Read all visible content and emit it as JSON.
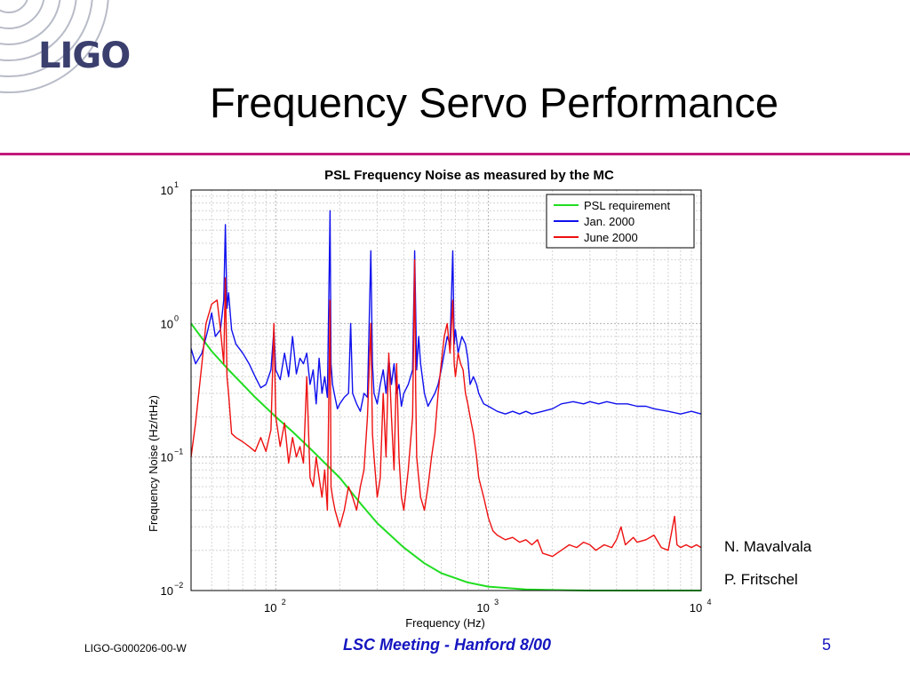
{
  "logo": {
    "text": "LIGO"
  },
  "slide": {
    "title": "Frequency Servo Performance"
  },
  "credits": [
    "N. Mavalvala",
    "P. Fritschel"
  ],
  "footer": {
    "left": "LIGO-G000206-00-W",
    "center": "LSC Meeting - Hanford 8/00",
    "page": "5"
  },
  "colors": {
    "accent_rule": "#c2187c",
    "footer_text": "#1515c0",
    "logo": "#3b3f6e"
  },
  "chart_data": {
    "type": "line",
    "title": "PSL Frequency Noise as measured by the MC",
    "xlabel": "Frequency (Hz)",
    "ylabel": "Frequency Noise (Hz/rtHz)",
    "xscale": "log",
    "yscale": "log",
    "xlim": [
      40,
      10000
    ],
    "ylim": [
      0.01,
      10
    ],
    "grid": true,
    "legend_position": "top-right",
    "x_tick_labels": [
      {
        "value": 100,
        "base": "10",
        "exp": "2"
      },
      {
        "value": 1000,
        "base": "10",
        "exp": "3"
      },
      {
        "value": 10000,
        "base": "10",
        "exp": "4"
      }
    ],
    "y_tick_labels": [
      {
        "value": 0.01,
        "base": "10",
        "exp": "−2"
      },
      {
        "value": 0.1,
        "base": "10",
        "exp": "−1"
      },
      {
        "value": 1,
        "base": "10",
        "exp": "0"
      },
      {
        "value": 10,
        "base": "10",
        "exp": "1"
      }
    ],
    "series": [
      {
        "name": "PSL requirement",
        "color": "#22dd22",
        "points": [
          [
            40,
            1.0
          ],
          [
            50,
            0.62
          ],
          [
            60,
            0.45
          ],
          [
            70,
            0.35
          ],
          [
            80,
            0.28
          ],
          [
            100,
            0.2
          ],
          [
            120,
            0.155
          ],
          [
            150,
            0.11
          ],
          [
            200,
            0.07
          ],
          [
            250,
            0.045
          ],
          [
            300,
            0.032
          ],
          [
            400,
            0.021
          ],
          [
            500,
            0.016
          ],
          [
            600,
            0.0135
          ],
          [
            800,
            0.0115
          ],
          [
            1000,
            0.0107
          ],
          [
            1500,
            0.0102
          ],
          [
            2000,
            0.0101
          ],
          [
            3000,
            0.01
          ],
          [
            5000,
            0.01
          ],
          [
            10000,
            0.01
          ]
        ]
      },
      {
        "name": "Jan. 2000",
        "color": "#1010ee",
        "points": [
          [
            40,
            0.65
          ],
          [
            42,
            0.5
          ],
          [
            45,
            0.6
          ],
          [
            48,
            0.9
          ],
          [
            50,
            1.2
          ],
          [
            52,
            0.8
          ],
          [
            55,
            0.9
          ],
          [
            57,
            1.5
          ],
          [
            58,
            5.5
          ],
          [
            59,
            1.3
          ],
          [
            60,
            1.7
          ],
          [
            62,
            0.9
          ],
          [
            65,
            0.7
          ],
          [
            70,
            0.6
          ],
          [
            75,
            0.5
          ],
          [
            80,
            0.4
          ],
          [
            85,
            0.33
          ],
          [
            90,
            0.35
          ],
          [
            95,
            0.45
          ],
          [
            98,
            0.9
          ],
          [
            100,
            0.45
          ],
          [
            105,
            0.38
          ],
          [
            110,
            0.6
          ],
          [
            115,
            0.4
          ],
          [
            120,
            0.8
          ],
          [
            125,
            0.42
          ],
          [
            130,
            0.55
          ],
          [
            135,
            0.5
          ],
          [
            140,
            0.6
          ],
          [
            145,
            0.35
          ],
          [
            150,
            0.45
          ],
          [
            155,
            0.25
          ],
          [
            160,
            0.55
          ],
          [
            165,
            0.3
          ],
          [
            170,
            0.4
          ],
          [
            175,
            0.28
          ],
          [
            180,
            7.0
          ],
          [
            182,
            0.5
          ],
          [
            185,
            0.35
          ],
          [
            190,
            0.28
          ],
          [
            195,
            0.23
          ],
          [
            200,
            0.25
          ],
          [
            210,
            0.28
          ],
          [
            220,
            0.3
          ],
          [
            225,
            1.0
          ],
          [
            230,
            0.3
          ],
          [
            240,
            0.25
          ],
          [
            250,
            0.22
          ],
          [
            260,
            0.3
          ],
          [
            270,
            0.28
          ],
          [
            280,
            3.5
          ],
          [
            285,
            0.5
          ],
          [
            290,
            0.3
          ],
          [
            300,
            0.25
          ],
          [
            310,
            0.35
          ],
          [
            320,
            0.45
          ],
          [
            330,
            0.3
          ],
          [
            340,
            0.55
          ],
          [
            350,
            0.35
          ],
          [
            360,
            0.5
          ],
          [
            370,
            0.3
          ],
          [
            380,
            0.35
          ],
          [
            390,
            0.24
          ],
          [
            400,
            0.3
          ],
          [
            420,
            0.35
          ],
          [
            440,
            0.45
          ],
          [
            450,
            3.5
          ],
          [
            460,
            0.45
          ],
          [
            470,
            0.8
          ],
          [
            480,
            0.5
          ],
          [
            500,
            0.3
          ],
          [
            520,
            0.24
          ],
          [
            540,
            0.27
          ],
          [
            560,
            0.3
          ],
          [
            580,
            0.35
          ],
          [
            600,
            0.45
          ],
          [
            620,
            0.6
          ],
          [
            640,
            0.8
          ],
          [
            660,
            0.7
          ],
          [
            680,
            3.5
          ],
          [
            690,
            0.7
          ],
          [
            700,
            0.9
          ],
          [
            720,
            0.6
          ],
          [
            750,
            0.8
          ],
          [
            780,
            0.7
          ],
          [
            800,
            0.55
          ],
          [
            820,
            0.35
          ],
          [
            850,
            0.4
          ],
          [
            880,
            0.35
          ],
          [
            900,
            0.3
          ],
          [
            950,
            0.25
          ],
          [
            1000,
            0.24
          ],
          [
            1100,
            0.22
          ],
          [
            1200,
            0.21
          ],
          [
            1300,
            0.22
          ],
          [
            1400,
            0.21
          ],
          [
            1500,
            0.22
          ],
          [
            1600,
            0.21
          ],
          [
            1800,
            0.22
          ],
          [
            2000,
            0.23
          ],
          [
            2200,
            0.25
          ],
          [
            2500,
            0.26
          ],
          [
            2800,
            0.25
          ],
          [
            3000,
            0.26
          ],
          [
            3300,
            0.25
          ],
          [
            3600,
            0.26
          ],
          [
            4000,
            0.25
          ],
          [
            4500,
            0.25
          ],
          [
            5000,
            0.24
          ],
          [
            5500,
            0.24
          ],
          [
            6000,
            0.23
          ],
          [
            7000,
            0.22
          ],
          [
            8000,
            0.21
          ],
          [
            9000,
            0.22
          ],
          [
            10000,
            0.21
          ]
        ]
      },
      {
        "name": "June 2000",
        "color": "#ee1010",
        "points": [
          [
            40,
            0.1
          ],
          [
            42,
            0.18
          ],
          [
            45,
            0.5
          ],
          [
            47,
            1.0
          ],
          [
            50,
            1.4
          ],
          [
            53,
            1.5
          ],
          [
            55,
            0.9
          ],
          [
            57,
            0.5
          ],
          [
            58,
            2.2
          ],
          [
            59,
            0.4
          ],
          [
            60,
            0.3
          ],
          [
            62,
            0.15
          ],
          [
            65,
            0.14
          ],
          [
            70,
            0.13
          ],
          [
            75,
            0.12
          ],
          [
            80,
            0.11
          ],
          [
            85,
            0.14
          ],
          [
            90,
            0.11
          ],
          [
            95,
            0.16
          ],
          [
            98,
            1.0
          ],
          [
            100,
            0.2
          ],
          [
            105,
            0.12
          ],
          [
            110,
            0.18
          ],
          [
            115,
            0.09
          ],
          [
            120,
            0.14
          ],
          [
            125,
            0.1
          ],
          [
            130,
            0.12
          ],
          [
            135,
            0.09
          ],
          [
            140,
            0.4
          ],
          [
            145,
            0.07
          ],
          [
            150,
            0.06
          ],
          [
            155,
            0.1
          ],
          [
            160,
            0.07
          ],
          [
            165,
            0.05
          ],
          [
            170,
            0.08
          ],
          [
            175,
            0.04
          ],
          [
            180,
            1.5
          ],
          [
            182,
            0.06
          ],
          [
            185,
            0.05
          ],
          [
            190,
            0.04
          ],
          [
            200,
            0.03
          ],
          [
            210,
            0.04
          ],
          [
            220,
            0.06
          ],
          [
            230,
            0.05
          ],
          [
            240,
            0.04
          ],
          [
            250,
            0.06
          ],
          [
            260,
            0.08
          ],
          [
            270,
            0.2
          ],
          [
            280,
            1.0
          ],
          [
            285,
            0.15
          ],
          [
            290,
            0.1
          ],
          [
            300,
            0.05
          ],
          [
            310,
            0.07
          ],
          [
            320,
            0.3
          ],
          [
            330,
            0.1
          ],
          [
            340,
            0.6
          ],
          [
            350,
            0.2
          ],
          [
            360,
            0.08
          ],
          [
            370,
            0.5
          ],
          [
            380,
            0.1
          ],
          [
            390,
            0.05
          ],
          [
            400,
            0.04
          ],
          [
            420,
            0.08
          ],
          [
            440,
            0.2
          ],
          [
            450,
            3.0
          ],
          [
            455,
            0.3
          ],
          [
            460,
            0.1
          ],
          [
            470,
            0.07
          ],
          [
            480,
            0.05
          ],
          [
            500,
            0.04
          ],
          [
            520,
            0.06
          ],
          [
            540,
            0.1
          ],
          [
            560,
            0.15
          ],
          [
            580,
            0.3
          ],
          [
            600,
            0.5
          ],
          [
            620,
            0.8
          ],
          [
            640,
            1.0
          ],
          [
            660,
            0.6
          ],
          [
            680,
            1.5
          ],
          [
            690,
            0.5
          ],
          [
            700,
            0.4
          ],
          [
            720,
            0.6
          ],
          [
            740,
            0.5
          ],
          [
            760,
            0.45
          ],
          [
            780,
            0.3
          ],
          [
            800,
            0.25
          ],
          [
            820,
            0.2
          ],
          [
            850,
            0.15
          ],
          [
            880,
            0.1
          ],
          [
            900,
            0.07
          ],
          [
            950,
            0.05
          ],
          [
            1000,
            0.035
          ],
          [
            1050,
            0.028
          ],
          [
            1100,
            0.026
          ],
          [
            1200,
            0.024
          ],
          [
            1300,
            0.025
          ],
          [
            1400,
            0.023
          ],
          [
            1500,
            0.024
          ],
          [
            1600,
            0.022
          ],
          [
            1700,
            0.024
          ],
          [
            1800,
            0.019
          ],
          [
            2000,
            0.018
          ],
          [
            2200,
            0.02
          ],
          [
            2400,
            0.022
          ],
          [
            2600,
            0.021
          ],
          [
            2800,
            0.023
          ],
          [
            3000,
            0.022
          ],
          [
            3200,
            0.02
          ],
          [
            3500,
            0.022
          ],
          [
            3800,
            0.021
          ],
          [
            4000,
            0.024
          ],
          [
            4200,
            0.03
          ],
          [
            4400,
            0.022
          ],
          [
            4800,
            0.025
          ],
          [
            5000,
            0.023
          ],
          [
            5500,
            0.024
          ],
          [
            6000,
            0.026
          ],
          [
            6500,
            0.021
          ],
          [
            7000,
            0.02
          ],
          [
            7500,
            0.036
          ],
          [
            7700,
            0.022
          ],
          [
            8000,
            0.021
          ],
          [
            8500,
            0.022
          ],
          [
            9000,
            0.021
          ],
          [
            9500,
            0.022
          ],
          [
            10000,
            0.021
          ]
        ]
      }
    ]
  }
}
